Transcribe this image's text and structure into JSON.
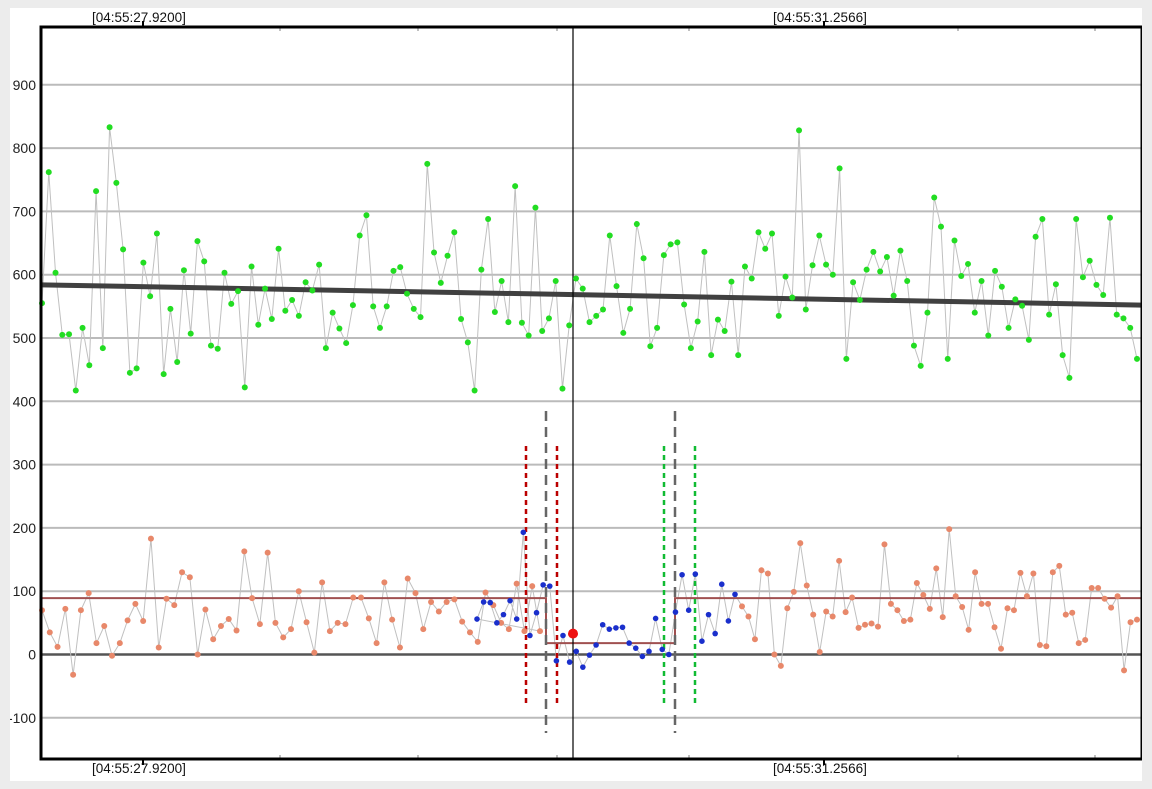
{
  "chart_data": {
    "type": "scatter",
    "title": "",
    "xlabel": "",
    "ylabel": "",
    "ylim": [
      -160,
      990
    ],
    "yticks": [
      -100,
      0,
      100,
      200,
      300,
      400,
      500,
      600,
      700,
      800,
      900
    ],
    "grid": true,
    "time_labels": {
      "top_left": "[04:55:27.9200]",
      "top_right": "[04:55:31.2566]",
      "bottom_left": "[04:55:27.9200]",
      "bottom_right": "[04:55:31.2566]"
    },
    "colors": {
      "upper_points": "#22dd22",
      "lower_points": "#e8886a",
      "event_points": "#1a2fcc",
      "connector": "#c0c0c0",
      "trend": "#404040",
      "baseline": "#a05050",
      "zero_line": "#555555",
      "cursor": "#000000",
      "marker": "#ee1111",
      "red_dash": "#bb0000",
      "gray_dash": "#666666",
      "green_dash": "#11bb33"
    },
    "series": [
      {
        "role": "upper",
        "values": [
          555,
          762,
          603,
          505,
          506,
          417,
          516,
          457,
          732,
          484,
          833,
          745,
          640,
          445,
          452,
          619,
          566,
          665,
          443,
          546,
          462,
          607,
          507,
          653,
          621,
          488,
          483,
          603,
          554,
          574,
          422,
          613,
          521,
          578,
          530,
          641,
          543,
          560,
          535,
          588,
          575,
          616,
          484,
          540,
          515,
          492,
          552,
          662,
          694,
          550,
          516,
          550,
          606,
          612,
          570,
          546,
          533,
          775,
          635,
          587,
          630,
          667,
          530,
          493,
          417,
          608,
          688,
          541,
          590,
          525,
          740,
          524,
          504,
          706,
          511,
          531,
          590,
          420,
          520,
          594,
          578,
          525,
          535,
          545,
          662,
          582,
          508,
          546,
          680,
          626,
          487,
          516,
          631,
          648,
          651,
          553,
          484,
          526,
          636,
          473,
          529,
          511,
          589,
          473,
          613,
          594,
          667,
          641,
          665,
          535,
          597,
          564,
          828,
          545,
          615,
          662,
          616,
          600,
          768,
          467,
          588,
          560,
          608,
          636,
          605,
          628,
          567,
          638,
          590,
          488,
          456,
          540,
          722,
          676,
          467,
          654,
          598,
          617,
          540,
          590,
          504,
          606,
          581,
          516,
          561,
          551,
          497,
          660,
          688,
          537,
          585,
          473,
          437,
          688,
          596,
          622,
          584,
          568,
          690,
          537,
          531,
          516,
          467
        ],
        "trend": [
          584,
          552
        ]
      },
      {
        "role": "lower",
        "values": [
          70,
          35,
          12,
          72,
          -32,
          70,
          97,
          18,
          45,
          -2,
          18,
          54,
          80,
          53,
          183,
          11,
          88,
          78,
          130,
          122,
          0,
          71,
          24,
          45,
          56,
          38,
          163,
          89,
          48,
          161,
          50,
          27,
          40,
          100,
          51,
          3,
          114,
          37,
          50,
          48,
          90,
          90,
          57,
          18,
          114,
          55,
          11,
          120,
          97,
          40,
          83,
          68,
          83,
          87,
          52,
          35,
          20,
          98,
          78,
          50,
          40,
          112,
          37,
          108,
          37
        ],
        "baseline": 89
      },
      {
        "role": "event",
        "values": [
          56,
          83,
          82,
          50,
          63,
          85,
          56,
          193,
          30,
          66,
          110,
          108,
          -10,
          30,
          -12,
          5,
          -20,
          -1,
          15,
          47,
          40,
          42,
          43,
          18,
          10,
          -3,
          5,
          57,
          8,
          0,
          67,
          126,
          70,
          127,
          21,
          63,
          33,
          111,
          53,
          95
        ],
        "baseline": 18
      },
      {
        "role": "lower_tail",
        "values": [
          76,
          60,
          24,
          133,
          128,
          0,
          -18,
          73,
          99,
          176,
          109,
          63,
          4,
          68,
          60,
          148,
          67,
          90,
          42,
          47,
          49,
          44,
          174,
          80,
          70,
          53,
          55,
          113,
          94,
          72,
          136,
          59,
          198,
          92,
          75,
          39,
          130,
          80,
          80,
          43,
          9,
          73,
          70,
          129,
          92,
          128,
          15,
          13,
          130,
          140,
          63,
          66,
          18,
          23,
          105,
          105,
          88,
          74,
          92,
          -25,
          51,
          55
        ]
      }
    ],
    "annotations": {
      "red_dashed_x": [
        526,
        557
      ],
      "gray_dashed_x": [
        546,
        675
      ],
      "green_dashed_x": [
        664,
        695
      ],
      "cursor_x": 573,
      "marker": {
        "x": 573,
        "y": 33
      }
    }
  }
}
